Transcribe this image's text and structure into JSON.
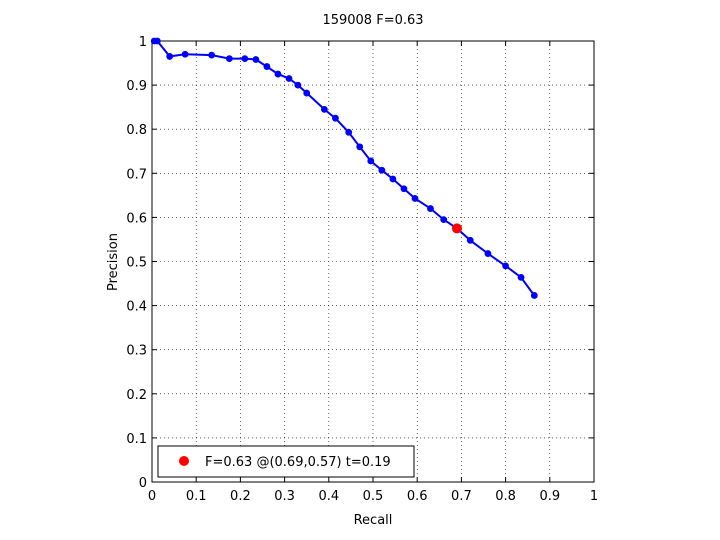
{
  "chart_data": {
    "type": "line",
    "title": "159008 F=0.63",
    "xlabel": "Recall",
    "ylabel": "Precision",
    "xlim": [
      0,
      1
    ],
    "ylim": [
      0,
      1
    ],
    "xticks": [
      0,
      0.1,
      0.2,
      0.3,
      0.4,
      0.5,
      0.6,
      0.7,
      0.8,
      0.9,
      1
    ],
    "yticks": [
      0,
      0.1,
      0.2,
      0.3,
      0.4,
      0.5,
      0.6,
      0.7,
      0.8,
      0.9,
      1
    ],
    "xtick_labels": [
      "0",
      "0.1",
      "0.2",
      "0.3",
      "0.4",
      "0.5",
      "0.6",
      "0.7",
      "0.8",
      "0.9",
      "1"
    ],
    "ytick_labels": [
      "0",
      "0.1",
      "0.2",
      "0.3",
      "0.4",
      "0.5",
      "0.6",
      "0.7",
      "0.8",
      "0.9",
      "1"
    ],
    "grid": true,
    "legend_position": "bottom-left",
    "series": [
      {
        "color": "#0000ff",
        "points": [
          [
            0.005,
            1.0
          ],
          [
            0.012,
            1.0
          ],
          [
            0.04,
            0.965
          ],
          [
            0.075,
            0.97
          ],
          [
            0.135,
            0.968
          ],
          [
            0.175,
            0.96
          ],
          [
            0.21,
            0.96
          ],
          [
            0.235,
            0.958
          ],
          [
            0.26,
            0.942
          ],
          [
            0.285,
            0.925
          ],
          [
            0.31,
            0.915
          ],
          [
            0.33,
            0.9
          ],
          [
            0.35,
            0.882
          ],
          [
            0.39,
            0.845
          ],
          [
            0.415,
            0.825
          ],
          [
            0.445,
            0.793
          ],
          [
            0.47,
            0.76
          ],
          [
            0.495,
            0.728
          ],
          [
            0.52,
            0.707
          ],
          [
            0.545,
            0.687
          ],
          [
            0.57,
            0.665
          ],
          [
            0.595,
            0.643
          ],
          [
            0.63,
            0.62
          ],
          [
            0.66,
            0.595
          ],
          [
            0.69,
            0.575
          ],
          [
            0.72,
            0.548
          ],
          [
            0.76,
            0.518
          ],
          [
            0.8,
            0.49
          ],
          [
            0.835,
            0.464
          ],
          [
            0.865,
            0.423
          ]
        ]
      }
    ],
    "highlight": {
      "x": 0.69,
      "y": 0.575,
      "color": "#ff0000",
      "label": "F=0.63 @(0.69,0.57) t=0.19"
    }
  }
}
